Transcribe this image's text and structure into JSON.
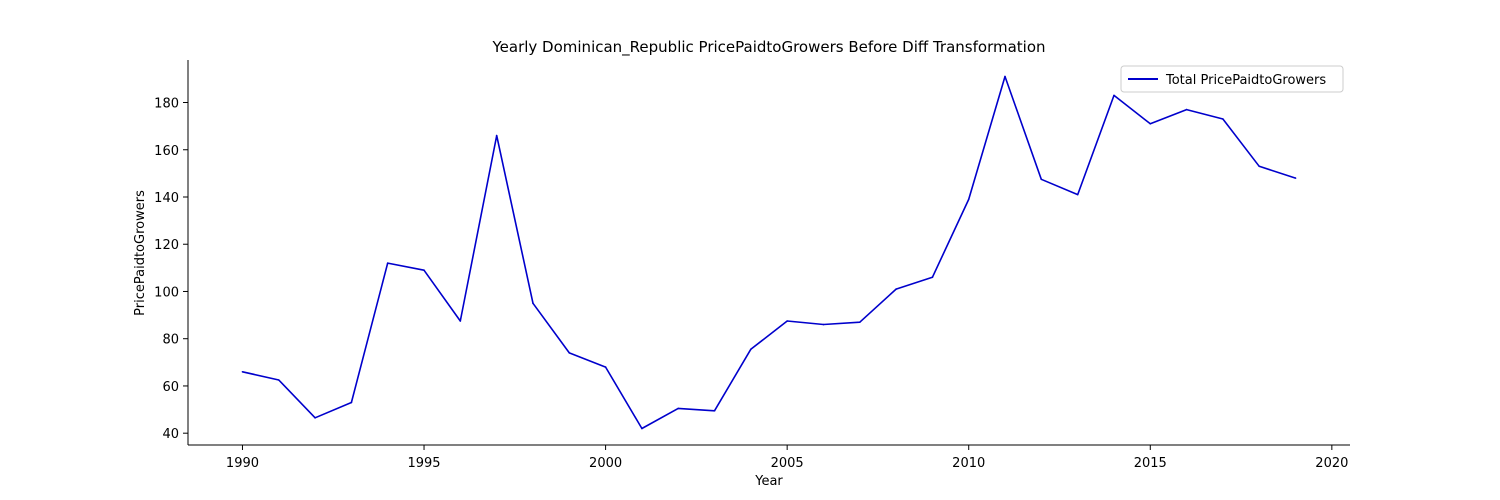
{
  "chart_data": {
    "type": "line",
    "title": "Yearly Dominican_Republic PricePaidtoGrowers Before Diff Transformation",
    "xlabel": "Year",
    "ylabel": "PricePaidtoGrowers",
    "xlim": [
      1988.5,
      2020.5
    ],
    "ylim": [
      35,
      198
    ],
    "xticks": [
      1990,
      1995,
      2000,
      2005,
      2010,
      2015,
      2020
    ],
    "yticks": [
      40,
      60,
      80,
      100,
      120,
      140,
      160,
      180
    ],
    "legend_position": "top-right",
    "grid": false,
    "series": [
      {
        "name": "Total PricePaidtoGrowers",
        "color": "#0000cc",
        "x": [
          1990,
          1991,
          1992,
          1993,
          1994,
          1995,
          1996,
          1997,
          1998,
          1999,
          2000,
          2001,
          2002,
          2003,
          2004,
          2005,
          2006,
          2007,
          2008,
          2009,
          2010,
          2011,
          2012,
          2013,
          2014,
          2015,
          2016,
          2017,
          2018,
          2019
        ],
        "values": [
          66,
          62.5,
          46.5,
          53,
          112,
          109,
          87.5,
          166,
          95,
          74,
          68,
          42,
          50.5,
          49.5,
          75.5,
          87.5,
          86,
          87,
          101,
          106,
          139,
          191,
          147.5,
          141,
          183,
          171,
          177,
          173,
          153,
          148
        ]
      }
    ]
  }
}
